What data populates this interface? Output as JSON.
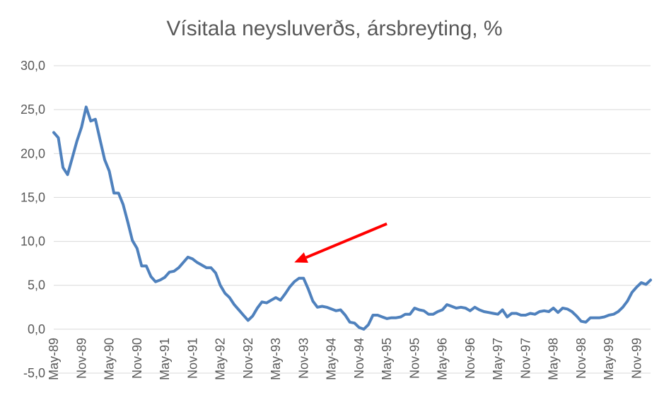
{
  "chart_data": {
    "type": "line",
    "title": "Vísitala neysluverðs, ársbreyting, %",
    "xlabel": "",
    "ylabel": "",
    "ylim": [
      -5,
      30
    ],
    "y_ticks": [
      "-5,0",
      "0,0",
      "5,0",
      "10,0",
      "15,0",
      "20,0",
      "25,0",
      "30,0"
    ],
    "y_tick_values": [
      -5,
      0,
      5,
      10,
      15,
      20,
      25,
      30
    ],
    "x_tick_labels": [
      "May-89",
      "Nov-89",
      "May-90",
      "Nov-90",
      "May-91",
      "Nov-91",
      "May-92",
      "Nov-92",
      "May-93",
      "Nov-93",
      "May-94",
      "Nov-94",
      "May-95",
      "Nov-95",
      "May-96",
      "Nov-96",
      "May-97",
      "Nov-97",
      "May-98",
      "Nov-98",
      "May-99",
      "Nov-99"
    ],
    "grid": true,
    "legend": "none",
    "start_month": "May-89",
    "series": [
      {
        "color": "#4f81bd",
        "values": [
          22.4,
          21.8,
          18.4,
          17.6,
          19.5,
          21.4,
          23.0,
          25.3,
          23.7,
          23.9,
          21.6,
          19.3,
          18.0,
          15.5,
          15.5,
          14.2,
          12.2,
          10.1,
          9.2,
          7.2,
          7.2,
          6.0,
          5.4,
          5.6,
          5.9,
          6.5,
          6.6,
          7.0,
          7.6,
          8.2,
          8.0,
          7.6,
          7.3,
          7.0,
          7.0,
          6.4,
          5.0,
          4.1,
          3.6,
          2.8,
          2.2,
          1.6,
          1.0,
          1.5,
          2.4,
          3.1,
          3.0,
          3.3,
          3.6,
          3.3,
          4.0,
          4.8,
          5.4,
          5.8,
          5.8,
          4.6,
          3.2,
          2.5,
          2.6,
          2.5,
          2.3,
          2.1,
          2.2,
          1.6,
          0.8,
          0.7,
          0.2,
          0.0,
          0.5,
          1.6,
          1.6,
          1.4,
          1.2,
          1.3,
          1.3,
          1.4,
          1.7,
          1.7,
          2.4,
          2.2,
          2.1,
          1.7,
          1.7,
          2.0,
          2.2,
          2.8,
          2.6,
          2.4,
          2.5,
          2.4,
          2.1,
          2.5,
          2.2,
          2.0,
          1.9,
          1.8,
          1.7,
          2.2,
          1.4,
          1.8,
          1.8,
          1.6,
          1.6,
          1.8,
          1.7,
          2.0,
          2.1,
          2.0,
          2.4,
          1.9,
          2.4,
          2.3,
          2.0,
          1.5,
          0.9,
          0.8,
          1.3,
          1.3,
          1.3,
          1.4,
          1.6,
          1.7,
          2.0,
          2.5,
          3.2,
          4.2,
          4.8,
          5.3,
          5.1,
          5.6
        ]
      }
    ],
    "annotations": [
      {
        "type": "arrow",
        "color": "#ff0000",
        "from": {
          "month_index": 72,
          "value": 12.0
        },
        "to": {
          "month_index": 52,
          "value": 7.6
        }
      }
    ]
  }
}
